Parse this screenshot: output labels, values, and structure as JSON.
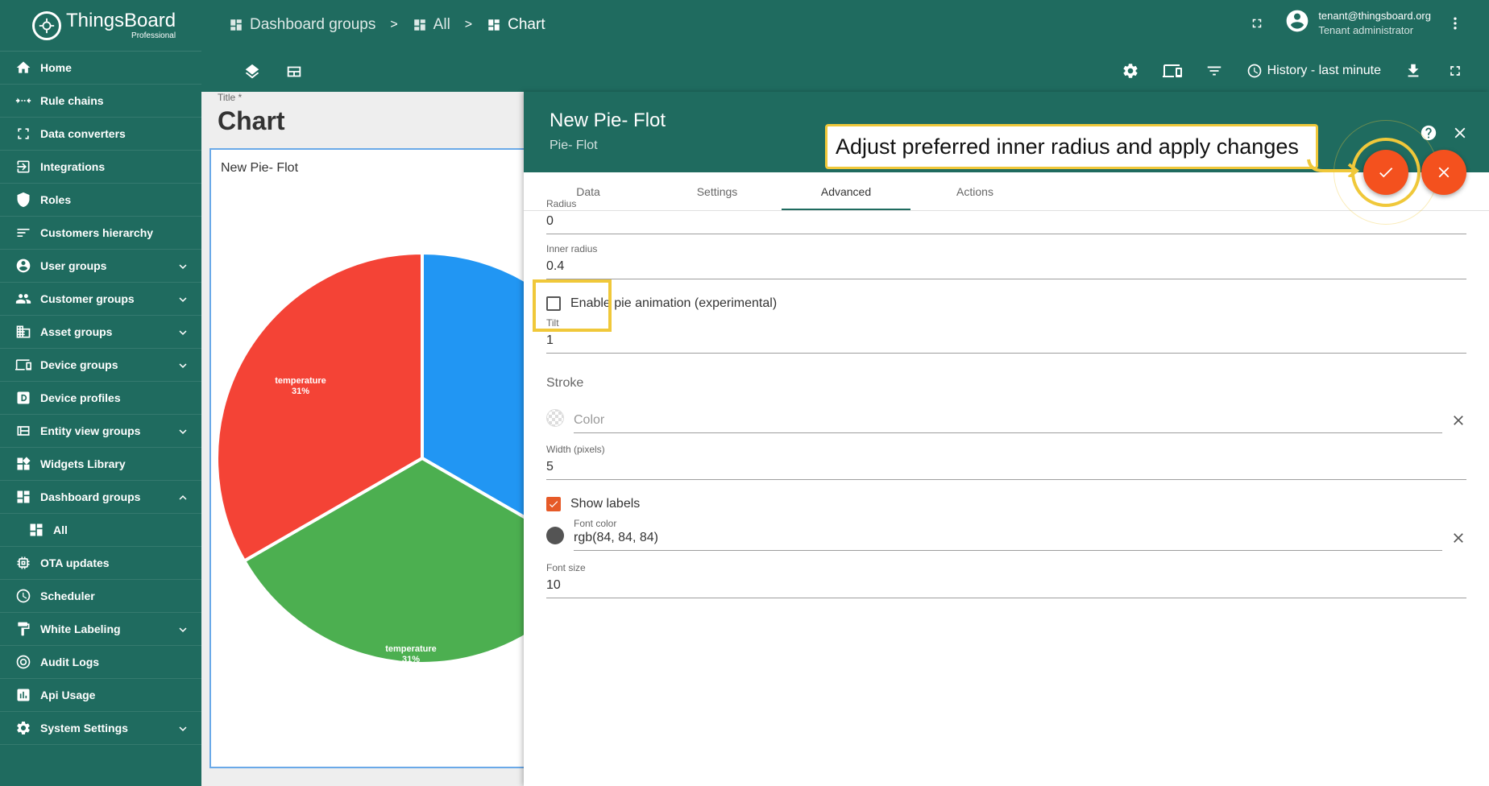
{
  "app": {
    "name": "ThingsBoard",
    "edition": "Professional"
  },
  "sidebar": {
    "items": [
      {
        "label": "Home",
        "icon": "home-icon",
        "expandable": false
      },
      {
        "label": "Rule chains",
        "icon": "rule-chains-icon",
        "expandable": false
      },
      {
        "label": "Data converters",
        "icon": "data-converters-icon",
        "expandable": false
      },
      {
        "label": "Integrations",
        "icon": "integrations-icon",
        "expandable": false
      },
      {
        "label": "Roles",
        "icon": "shield-icon",
        "expandable": false
      },
      {
        "label": "Customers hierarchy",
        "icon": "hierarchy-icon",
        "expandable": false
      },
      {
        "label": "User groups",
        "icon": "user-icon",
        "expandable": true
      },
      {
        "label": "Customer groups",
        "icon": "people-icon",
        "expandable": true
      },
      {
        "label": "Asset groups",
        "icon": "building-icon",
        "expandable": true
      },
      {
        "label": "Device groups",
        "icon": "devices-icon",
        "expandable": true
      },
      {
        "label": "Device profiles",
        "icon": "device-profile-icon",
        "expandable": false
      },
      {
        "label": "Entity view groups",
        "icon": "entity-view-icon",
        "expandable": true
      },
      {
        "label": "Widgets Library",
        "icon": "widgets-icon",
        "expandable": false
      },
      {
        "label": "Dashboard groups",
        "icon": "dashboard-icon",
        "expandable": true,
        "expanded": true
      },
      {
        "label": "All",
        "icon": "dashboard-icon",
        "expandable": false,
        "sub": true
      },
      {
        "label": "OTA updates",
        "icon": "chip-icon",
        "expandable": false
      },
      {
        "label": "Scheduler",
        "icon": "clock-icon",
        "expandable": false
      },
      {
        "label": "White Labeling",
        "icon": "paint-roller-icon",
        "expandable": true
      },
      {
        "label": "Audit Logs",
        "icon": "audit-icon",
        "expandable": false
      },
      {
        "label": "Api Usage",
        "icon": "chart-icon",
        "expandable": false
      },
      {
        "label": "System Settings",
        "icon": "gear-icon",
        "expandable": true
      }
    ]
  },
  "breadcrumb": {
    "items": [
      "Dashboard groups",
      "All",
      "Chart"
    ],
    "separator": ">"
  },
  "user": {
    "email": "tenant@thingsboard.org",
    "role": "Tenant administrator"
  },
  "toolbar": {
    "history_label": "History - last minute"
  },
  "dashboard": {
    "title_label": "Title *",
    "title": "Chart"
  },
  "widget": {
    "title": "New Pie- Flot",
    "slices": [
      {
        "label": "temperature",
        "percent": "31%",
        "color": "#f44336"
      },
      {
        "label": "temperature",
        "percent": "31%",
        "color": "#4caf50"
      }
    ],
    "partial_slice_color": "#2196f3"
  },
  "panel": {
    "title": "New Pie- Flot",
    "subtitle": "Pie- Flot",
    "tabs": [
      "Data",
      "Settings",
      "Advanced",
      "Actions"
    ],
    "active_tab": "Advanced",
    "radius": {
      "label": "Radius",
      "value": "0"
    },
    "inner_radius": {
      "label": "Inner radius",
      "value": "0.4"
    },
    "animation": {
      "label": "Enable pie animation (experimental)",
      "checked": false
    },
    "tilt": {
      "label": "Tilt",
      "value": "1"
    },
    "stroke_section": "Stroke",
    "stroke_color": {
      "placeholder": "Color",
      "value": ""
    },
    "stroke_width": {
      "label": "Width (pixels)",
      "value": "5"
    },
    "show_labels": {
      "label": "Show labels",
      "checked": true
    },
    "font_color": {
      "label": "Font color",
      "value": "rgb(84, 84, 84)",
      "swatch": "#545454"
    },
    "font_size": {
      "label": "Font size",
      "value": "10"
    }
  },
  "callout": {
    "text": "Adjust preferred inner radius and apply changes"
  },
  "colors": {
    "primary": "#1f6b5f",
    "accent": "#f4511e",
    "highlight": "#f0c83a"
  }
}
